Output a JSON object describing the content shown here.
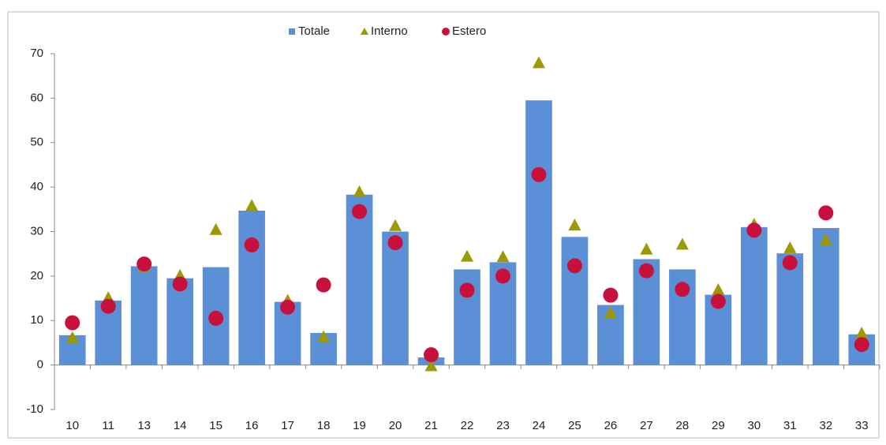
{
  "chart_data": {
    "type": "bar",
    "categories": [
      "10",
      "11",
      "13",
      "14",
      "15",
      "16",
      "17",
      "18",
      "19",
      "20",
      "21",
      "22",
      "23",
      "24",
      "25",
      "26",
      "27",
      "28",
      "29",
      "30",
      "31",
      "32",
      "33"
    ],
    "series": [
      {
        "name": "Totale",
        "color": "#5b8fd6",
        "marker": "bar",
        "values": [
          6.7,
          14.5,
          22.2,
          19.5,
          22,
          34.7,
          14.2,
          7.2,
          38.3,
          30,
          1.7,
          21.5,
          23.1,
          59.5,
          28.8,
          13.5,
          23.8,
          21.5,
          15.8,
          31,
          25.1,
          30.8,
          6.9
        ]
      },
      {
        "name": "Interno",
        "color": "#9c9a00",
        "marker": "triangle",
        "values": [
          6,
          15,
          22,
          20,
          30.3,
          35.7,
          14.4,
          6.2,
          38.8,
          31.2,
          -0.3,
          24.3,
          24.2,
          67.8,
          31.3,
          11.6,
          25.9,
          27,
          16.8,
          31.5,
          26.2,
          28,
          7
        ]
      },
      {
        "name": "Estero",
        "color": "#c8103c",
        "marker": "circle",
        "values": [
          9.5,
          13.2,
          22.7,
          18.2,
          10.5,
          27,
          13,
          18,
          34.5,
          27.5,
          2.3,
          16.8,
          20,
          42.8,
          22.3,
          15.7,
          21.2,
          17,
          14.3,
          30.3,
          23,
          34.2,
          4.6
        ]
      }
    ],
    "ylim": [
      -10,
      70
    ],
    "yticks": [
      -10,
      0,
      10,
      20,
      30,
      40,
      50,
      60,
      70
    ],
    "grid": false,
    "legend": "top"
  }
}
